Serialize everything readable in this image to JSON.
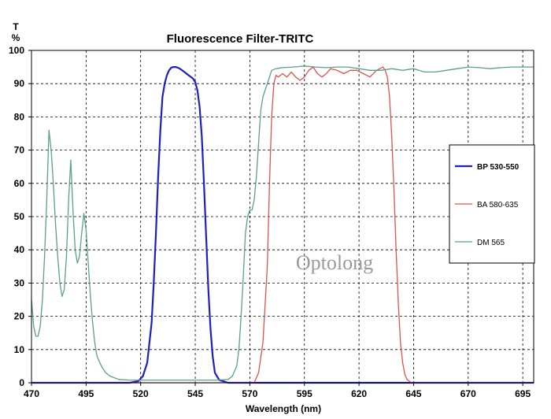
{
  "chart_data": {
    "type": "line",
    "title": "Fluorescence Filter-TRITC",
    "xlabel": "Wavelength (nm)",
    "ylabel_top": "T",
    "ylabel_unit": "%",
    "xlim": [
      470,
      700
    ],
    "ylim": [
      0,
      100
    ],
    "xticks": [
      470,
      495,
      520,
      545,
      570,
      595,
      620,
      645,
      670,
      695
    ],
    "yticks": [
      0,
      10,
      20,
      30,
      40,
      50,
      60,
      70,
      80,
      90,
      100
    ],
    "grid": true,
    "legend_position": "right",
    "watermark": "Optolong",
    "series": [
      {
        "name": "BP 530-550",
        "color": "#1f1fbf",
        "x": [
          470,
          515,
          519,
          521,
          523,
          525,
          526,
          527,
          528,
          529,
          530,
          531,
          532,
          533,
          534,
          535,
          536,
          537,
          538,
          539,
          540,
          541,
          542,
          543,
          544,
          545,
          546,
          547,
          548,
          549,
          550,
          551,
          552,
          553,
          554,
          556,
          560,
          700
        ],
        "y": [
          0,
          0,
          0.5,
          2,
          6,
          18,
          30,
          45,
          62,
          76,
          86,
          90,
          92.5,
          94,
          94.8,
          95,
          95,
          94.8,
          94.5,
          94,
          93.5,
          93,
          92.5,
          92,
          91.5,
          90.5,
          88,
          83,
          74,
          60,
          44,
          28,
          16,
          8,
          3,
          0.8,
          0,
          0
        ]
      },
      {
        "name": "BA 580-635",
        "color": "#d9534f",
        "x": [
          470,
          572,
          574,
          576,
          578,
          579,
          580,
          581,
          582,
          583,
          584,
          585,
          587,
          589,
          591,
          593,
          595,
          597,
          599,
          601,
          603,
          605,
          607,
          610,
          613,
          616,
          619,
          622,
          625,
          628,
          631,
          632,
          633,
          634,
          635,
          636,
          637,
          638,
          639,
          640,
          641,
          642,
          644,
          700
        ],
        "y": [
          0,
          0,
          3,
          12,
          35,
          60,
          80,
          90,
          92.5,
          92,
          92.5,
          93,
          92,
          93.5,
          92,
          91,
          92,
          94,
          95,
          93,
          92,
          93,
          94.5,
          94,
          93,
          94,
          94,
          93,
          92,
          94,
          95,
          94,
          92,
          86,
          74,
          58,
          40,
          24,
          12,
          6,
          2.5,
          1,
          0,
          0
        ]
      },
      {
        "name": "DM 565",
        "color": "#5aa08a",
        "x": [
          470,
          471,
          472,
          473,
          474,
          475,
          476,
          477,
          478,
          479,
          480,
          481,
          482,
          483,
          484,
          485,
          486,
          487,
          488,
          489,
          490,
          491,
          492,
          493,
          494,
          495,
          496,
          497,
          498,
          499,
          500,
          502,
          504,
          506,
          508,
          510,
          515,
          530,
          545,
          555,
          560,
          562,
          564,
          565,
          566,
          567,
          568,
          569,
          570,
          571,
          572,
          573,
          574,
          575,
          576,
          577,
          578,
          579,
          580,
          582,
          585,
          590,
          595,
          600,
          605,
          610,
          615,
          620,
          625,
          630,
          635,
          640,
          645,
          650,
          655,
          660,
          665,
          670,
          675,
          680,
          685,
          690,
          695,
          700
        ],
        "y": [
          25,
          17,
          14,
          14,
          17,
          25,
          38,
          55,
          76,
          70,
          60,
          48,
          38,
          30,
          26,
          28,
          38,
          55,
          67,
          52,
          40,
          36,
          38,
          45,
          51,
          46,
          36,
          26,
          18,
          12,
          8,
          5,
          3,
          2,
          1.5,
          1,
          0.8,
          0.8,
          0.8,
          0.8,
          1,
          2,
          5,
          10,
          20,
          32,
          45,
          50,
          52,
          52,
          55,
          62,
          72,
          82,
          86,
          88,
          90,
          92,
          94,
          94.5,
          94.8,
          95,
          95.3,
          95,
          94.8,
          95,
          95,
          94.5,
          94,
          94,
          94.5,
          94,
          94.5,
          93.5,
          93.5,
          94,
          94.5,
          95,
          94.8,
          94.5,
          94.8,
          95,
          95,
          95
        ]
      }
    ]
  }
}
